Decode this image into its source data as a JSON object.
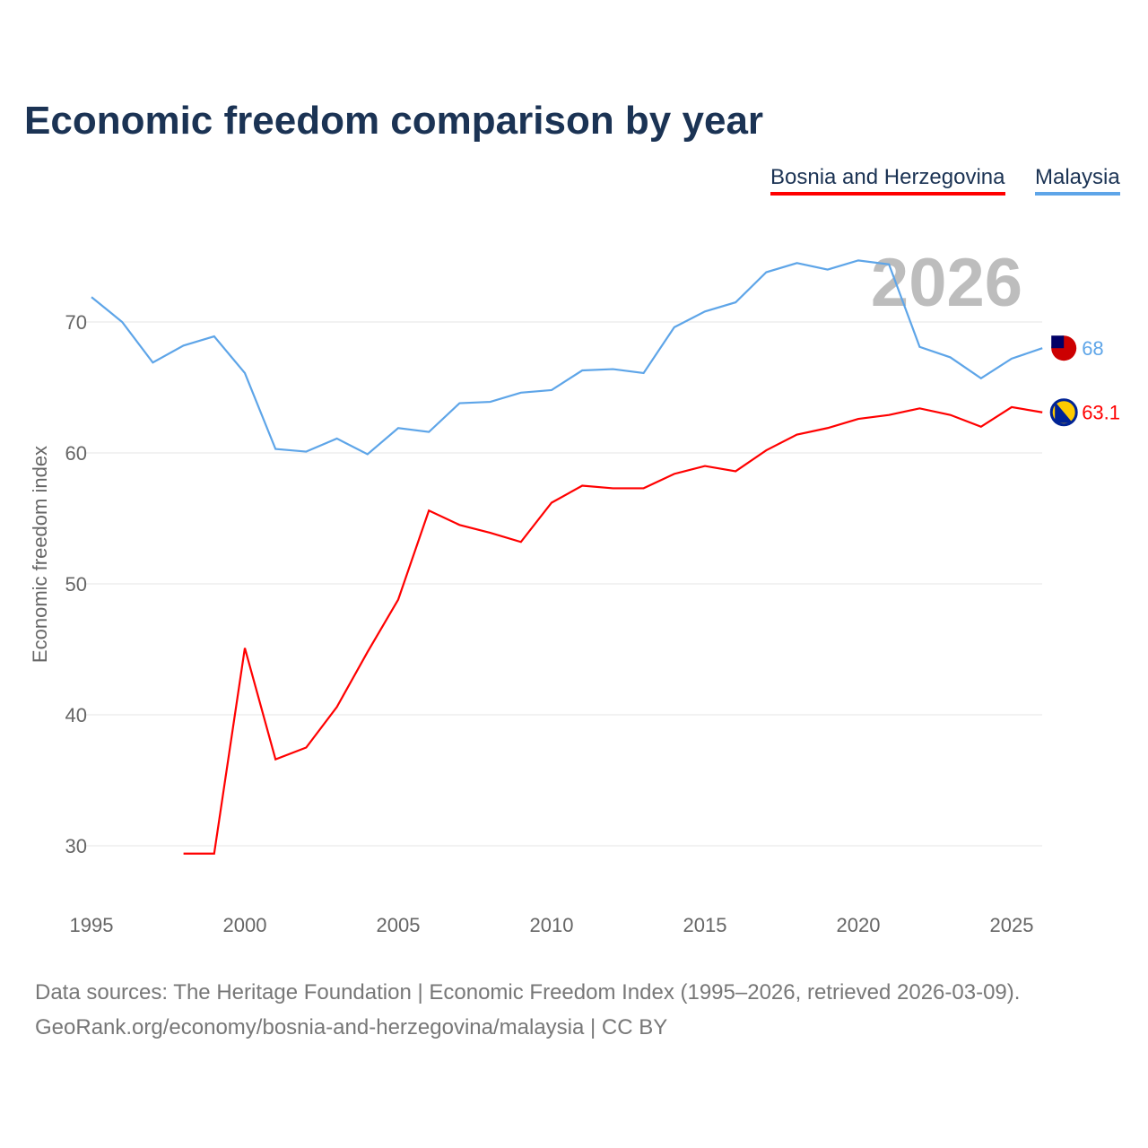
{
  "chart_data": {
    "type": "line",
    "title": "Economic freedom comparison by year",
    "xlabel": "",
    "ylabel": "Economic freedom index",
    "xlim": [
      1995,
      2026
    ],
    "ylim": [
      25.5,
      76.5
    ],
    "yticks": [
      30,
      40,
      50,
      60,
      70
    ],
    "xticks": [
      1995,
      2000,
      2005,
      2010,
      2015,
      2020,
      2025
    ],
    "grid": true,
    "legend_position": "top-right",
    "year_watermark": "2026",
    "series": [
      {
        "name": "Bosnia and Herzegovina",
        "color": "#ff0000",
        "end_label": "63.1",
        "x": [
          1998,
          1999,
          2000,
          2001,
          2002,
          2003,
          2004,
          2005,
          2006,
          2007,
          2008,
          2009,
          2010,
          2011,
          2012,
          2013,
          2014,
          2015,
          2016,
          2017,
          2018,
          2019,
          2020,
          2021,
          2022,
          2023,
          2024,
          2025,
          2026
        ],
        "values": [
          29.4,
          29.4,
          45.1,
          36.6,
          37.5,
          40.6,
          44.8,
          48.8,
          55.6,
          54.5,
          53.9,
          53.2,
          56.2,
          57.5,
          57.3,
          57.3,
          58.4,
          59.0,
          58.6,
          60.2,
          61.4,
          61.9,
          62.6,
          62.9,
          63.4,
          62.9,
          62.0,
          63.5,
          63.1
        ]
      },
      {
        "name": "Malaysia",
        "color": "#5ea5e8",
        "end_label": "68",
        "x": [
          1995,
          1996,
          1997,
          1998,
          1999,
          2000,
          2001,
          2002,
          2003,
          2004,
          2005,
          2006,
          2007,
          2008,
          2009,
          2010,
          2011,
          2012,
          2013,
          2014,
          2015,
          2016,
          2017,
          2018,
          2019,
          2020,
          2021,
          2022,
          2023,
          2024,
          2025,
          2026
        ],
        "values": [
          71.9,
          70.0,
          66.9,
          68.2,
          68.9,
          66.1,
          60.3,
          60.1,
          61.1,
          59.9,
          61.9,
          61.6,
          63.8,
          63.9,
          64.6,
          64.8,
          66.3,
          66.4,
          66.1,
          69.6,
          70.8,
          71.5,
          73.8,
          74.5,
          74.0,
          74.7,
          74.4,
          68.1,
          67.3,
          65.7,
          67.2,
          68.0
        ]
      }
    ]
  },
  "source": {
    "line1": "Data sources: The Heritage Foundation | Economic Freedom Index (1995–2026, retrieved 2026-03-09).",
    "line2": "GeoRank.org/economy/bosnia-and-herzegovina/malaysia | CC BY"
  }
}
